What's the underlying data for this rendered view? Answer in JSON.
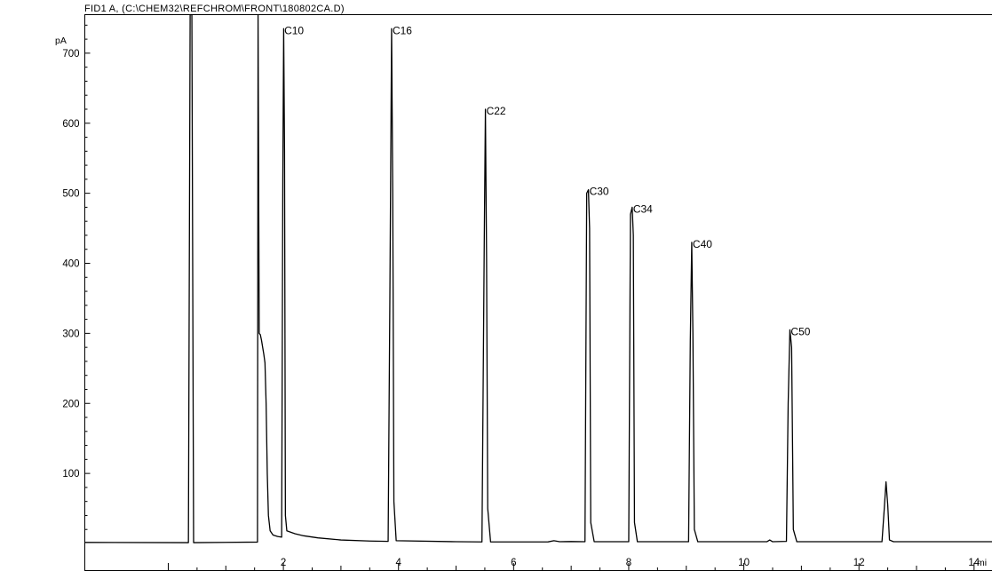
{
  "chart_data": {
    "type": "line",
    "title": "FID1 A, (C:\\CHEM32\\REFCHROM\\FRONT\\180802CA.D)",
    "ylabel": "pA",
    "xlabel": "mi",
    "xlim": [
      -1.45,
      14.35
    ],
    "ylim": [
      0,
      755
    ],
    "x_ticks": [
      2,
      4,
      6,
      8,
      10,
      12,
      14
    ],
    "x_tick_labels": [
      "2",
      "4",
      "6",
      "8",
      "10",
      "12",
      "14"
    ],
    "y_ticks": [
      100,
      200,
      300,
      400,
      500,
      600,
      700
    ],
    "y_tick_labels": [
      "100",
      "200",
      "300",
      "400",
      "500",
      "600",
      "700"
    ],
    "grid": false,
    "series": [
      {
        "color": "#000000",
        "points": [
          [
            -1.45,
            1.5
          ],
          [
            0.35,
            1.2
          ],
          [
            0.38,
            755
          ],
          [
            0.41,
            755
          ],
          [
            0.44,
            1.2
          ],
          [
            1.55,
            2.0
          ],
          [
            1.56,
            755
          ],
          [
            1.58,
            300
          ],
          [
            1.6,
            298
          ],
          [
            1.62,
            290
          ],
          [
            1.64,
            280
          ],
          [
            1.66,
            270
          ],
          [
            1.68,
            258
          ],
          [
            1.7,
            200
          ],
          [
            1.72,
            100
          ],
          [
            1.74,
            40
          ],
          [
            1.77,
            18
          ],
          [
            1.82,
            12
          ],
          [
            1.9,
            10
          ],
          [
            1.97,
            9
          ],
          [
            1.99,
            520
          ],
          [
            2.005,
            735
          ],
          [
            2.02,
            560
          ],
          [
            2.035,
            40
          ],
          [
            2.06,
            18
          ],
          [
            2.2,
            14
          ],
          [
            2.35,
            11
          ],
          [
            2.6,
            8
          ],
          [
            3.0,
            5
          ],
          [
            3.5,
            3.5
          ],
          [
            3.82,
            3
          ],
          [
            3.85,
            350
          ],
          [
            3.88,
            735
          ],
          [
            3.9,
            500
          ],
          [
            3.92,
            60
          ],
          [
            3.96,
            4
          ],
          [
            5.0,
            2.5
          ],
          [
            5.45,
            2.2
          ],
          [
            5.49,
            430
          ],
          [
            5.51,
            620
          ],
          [
            5.53,
            410
          ],
          [
            5.55,
            50
          ],
          [
            5.6,
            2.2
          ],
          [
            6.6,
            2.3
          ],
          [
            6.7,
            4
          ],
          [
            6.8,
            2.5
          ],
          [
            7.0,
            2.8
          ],
          [
            7.24,
            2.5
          ],
          [
            7.27,
            500
          ],
          [
            7.3,
            505
          ],
          [
            7.32,
            450
          ],
          [
            7.34,
            30
          ],
          [
            7.4,
            2.5
          ],
          [
            8.0,
            2.5
          ],
          [
            8.03,
            470
          ],
          [
            8.06,
            480
          ],
          [
            8.08,
            440
          ],
          [
            8.1,
            30
          ],
          [
            8.15,
            2.5
          ],
          [
            9.04,
            2.5
          ],
          [
            9.07,
            290
          ],
          [
            9.095,
            430
          ],
          [
            9.115,
            300
          ],
          [
            9.14,
            20
          ],
          [
            9.2,
            2.5
          ],
          [
            10.4,
            2.5
          ],
          [
            10.45,
            5
          ],
          [
            10.5,
            2.5
          ],
          [
            10.74,
            3
          ],
          [
            10.77,
            200
          ],
          [
            10.8,
            305
          ],
          [
            10.83,
            280
          ],
          [
            10.86,
            20
          ],
          [
            10.92,
            2.5
          ],
          [
            12.4,
            2.5
          ],
          [
            12.44,
            50
          ],
          [
            12.47,
            88
          ],
          [
            12.5,
            55
          ],
          [
            12.53,
            5
          ],
          [
            12.6,
            2.5
          ],
          [
            14.35,
            2.5
          ]
        ]
      }
    ],
    "annotations": [
      {
        "text": "C10",
        "x": 2.0,
        "y": 735
      },
      {
        "text": "C16",
        "x": 3.88,
        "y": 735
      },
      {
        "text": "C22",
        "x": 5.51,
        "y": 620
      },
      {
        "text": "C30",
        "x": 7.3,
        "y": 505
      },
      {
        "text": "C34",
        "x": 8.06,
        "y": 480
      },
      {
        "text": "C40",
        "x": 9.095,
        "y": 430
      },
      {
        "text": "C50",
        "x": 10.8,
        "y": 305
      }
    ]
  }
}
